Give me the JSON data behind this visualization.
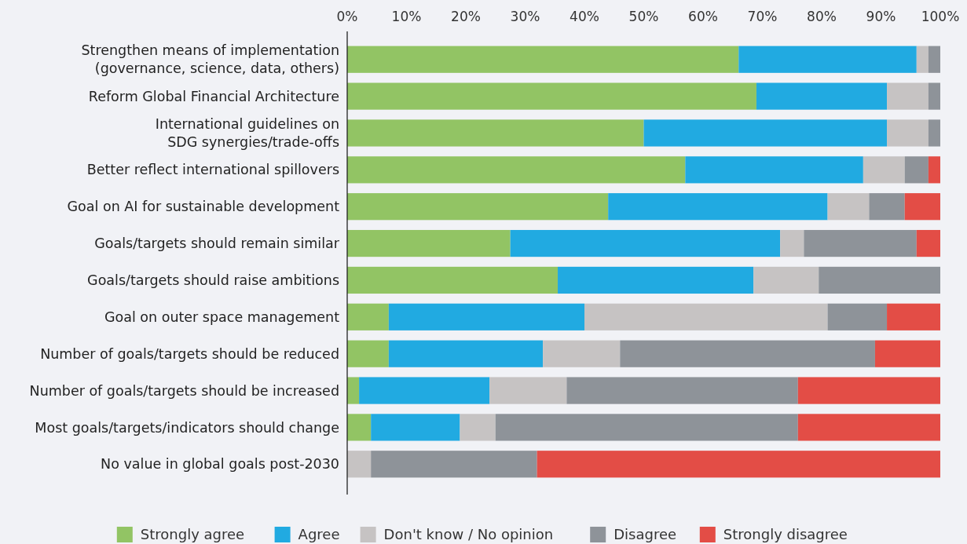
{
  "chart_data": {
    "type": "bar",
    "orientation": "horizontal",
    "stacked": true,
    "categories": [
      "Strengthen means of implementation\n(governance, science, data, others)",
      "Reform Global Financial Architecture",
      "International guidelines on\nSDG synergies/trade-offs",
      "Better reflect international spillovers",
      "Goal on AI for sustainable development",
      "Goals/targets should remain similar",
      "Goals/targets should raise ambitions",
      "Goal on outer space management",
      "Number of goals/targets should be reduced",
      "Number of goals/targets should be increased",
      "Most goals/targets/indicators should change",
      "No value in global goals post-2030"
    ],
    "series": [
      {
        "name": "Strongly agree",
        "color": "#92c464",
        "values": [
          66,
          69,
          50,
          57,
          44,
          27.5,
          35.5,
          7,
          7,
          2,
          4,
          0
        ]
      },
      {
        "name": "Agree",
        "color": "#21aae1",
        "values": [
          30,
          22,
          41,
          30,
          37,
          45.5,
          33,
          33,
          26,
          22,
          15,
          0
        ]
      },
      {
        "name": "Don't know / No opinion",
        "color": "#c6c3c3",
        "values": [
          2,
          7,
          7,
          7,
          7,
          4,
          11,
          41,
          13,
          13,
          6,
          4
        ]
      },
      {
        "name": "Disagree",
        "color": "#8e9399",
        "values": [
          2,
          2,
          2,
          4,
          6,
          19,
          20.5,
          10,
          43,
          39,
          51,
          28
        ]
      },
      {
        "name": "Strongly disagree",
        "color": "#e34d46",
        "values": [
          0,
          0,
          0,
          2,
          6,
          4,
          0,
          9,
          11,
          24,
          24,
          68
        ]
      }
    ],
    "xlim": [
      0,
      100
    ],
    "xticks": [
      {
        "value": 0,
        "label": "0%"
      },
      {
        "value": 10,
        "label": "10%"
      },
      {
        "value": 20,
        "label": "20%"
      },
      {
        "value": 30,
        "label": "30%"
      },
      {
        "value": 40,
        "label": "40%"
      },
      {
        "value": 50,
        "label": "50%"
      },
      {
        "value": 60,
        "label": "60%"
      },
      {
        "value": 70,
        "label": "70%"
      },
      {
        "value": 80,
        "label": "80%"
      },
      {
        "value": 90,
        "label": "90%"
      },
      {
        "value": 100,
        "label": "100%"
      }
    ],
    "grid": false,
    "legend": "bottom"
  }
}
